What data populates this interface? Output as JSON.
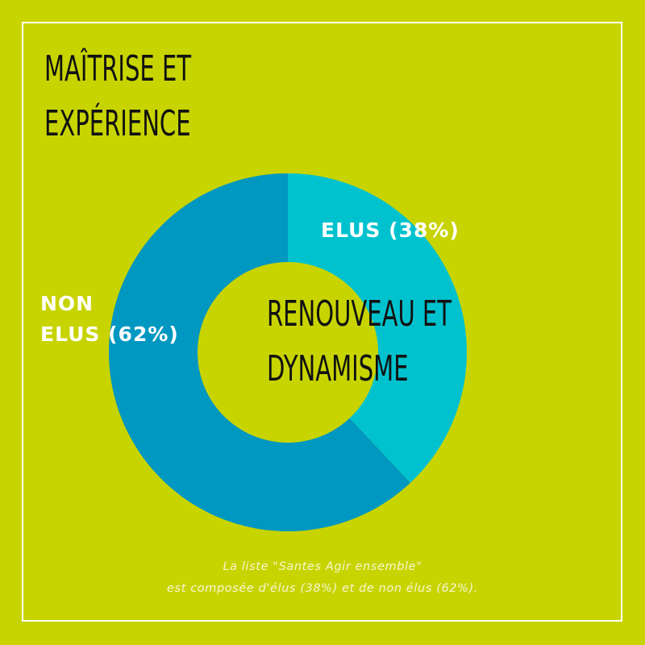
{
  "titles": {
    "top_line1": "MAÎTRISE ET",
    "top_line2": "EXPÉRIENCE",
    "right_line1": "RENOUVEAU ET",
    "right_line2": "DYNAMISME"
  },
  "chart_data": {
    "type": "pie",
    "donut": true,
    "series": [
      {
        "values": [
          38,
          62
        ]
      }
    ],
    "categories": [
      "ELUS",
      "NON ELUS"
    ],
    "slices": [
      {
        "label_line1": "ELUS (38%)",
        "label_line2": "",
        "value": 38,
        "color": "#00c2ce"
      },
      {
        "label_line1": "NON",
        "label_line2": "ELUS (62%)",
        "value": 62,
        "color": "#0097c0"
      }
    ],
    "title": "",
    "legend": "none"
  },
  "caption": {
    "line1": "La liste \"Santes Agir ensemble\"",
    "line2": "est composée d'élus (38%) et de non élus (62%)."
  },
  "colors": {
    "background": "#c8d400",
    "frame": "#ffffff",
    "title_text": "#111111",
    "label_text": "#ffffff"
  }
}
